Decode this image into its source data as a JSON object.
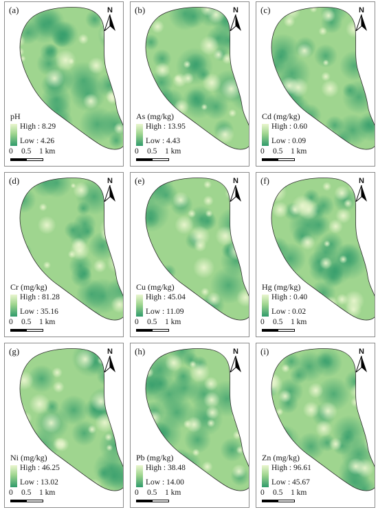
{
  "panels": [
    {
      "label": "(a)",
      "title": "pH",
      "high": "High : 8.29",
      "low": "Low : 4.26"
    },
    {
      "label": "(b)",
      "title": "As (mg/kg)",
      "high": "High : 13.95",
      "low": "Low : 4.43"
    },
    {
      "label": "(c)",
      "title": "Cd (mg/kg)",
      "high": "High : 0.60",
      "low": "Low : 0.09"
    },
    {
      "label": "(d)",
      "title": "Cr (mg/kg)",
      "high": "High : 81.28",
      "low": "Low : 35.16"
    },
    {
      "label": "(e)",
      "title": "Cu (mg/kg)",
      "high": "High : 45.04",
      "low": "Low : 11.09"
    },
    {
      "label": "(f)",
      "title": "Hg (mg/kg)",
      "high": "High : 0.40",
      "low": "Low : 0.02"
    },
    {
      "label": "(g)",
      "title": "Ni (mg/kg)",
      "high": "High : 46.25",
      "low": "Low : 13.02"
    },
    {
      "label": "(h)",
      "title": "Pb (mg/kg)",
      "high": "High : 38.48",
      "low": "Low : 14.00"
    },
    {
      "label": "(i)",
      "title": "Zn (mg/kg)",
      "high": "High : 96.61",
      "low": "Low : 45.67"
    }
  ],
  "north_label": "N",
  "scale": {
    "zero": "0",
    "mid": "0.5",
    "end": "1 km"
  },
  "colors": {
    "high": "#eaf6cf",
    "mid": "#9fd58f",
    "low": "#2f9a6a",
    "outline": "#2a2a2a"
  },
  "icons": {
    "north_arrow": "north-arrow-icon"
  }
}
